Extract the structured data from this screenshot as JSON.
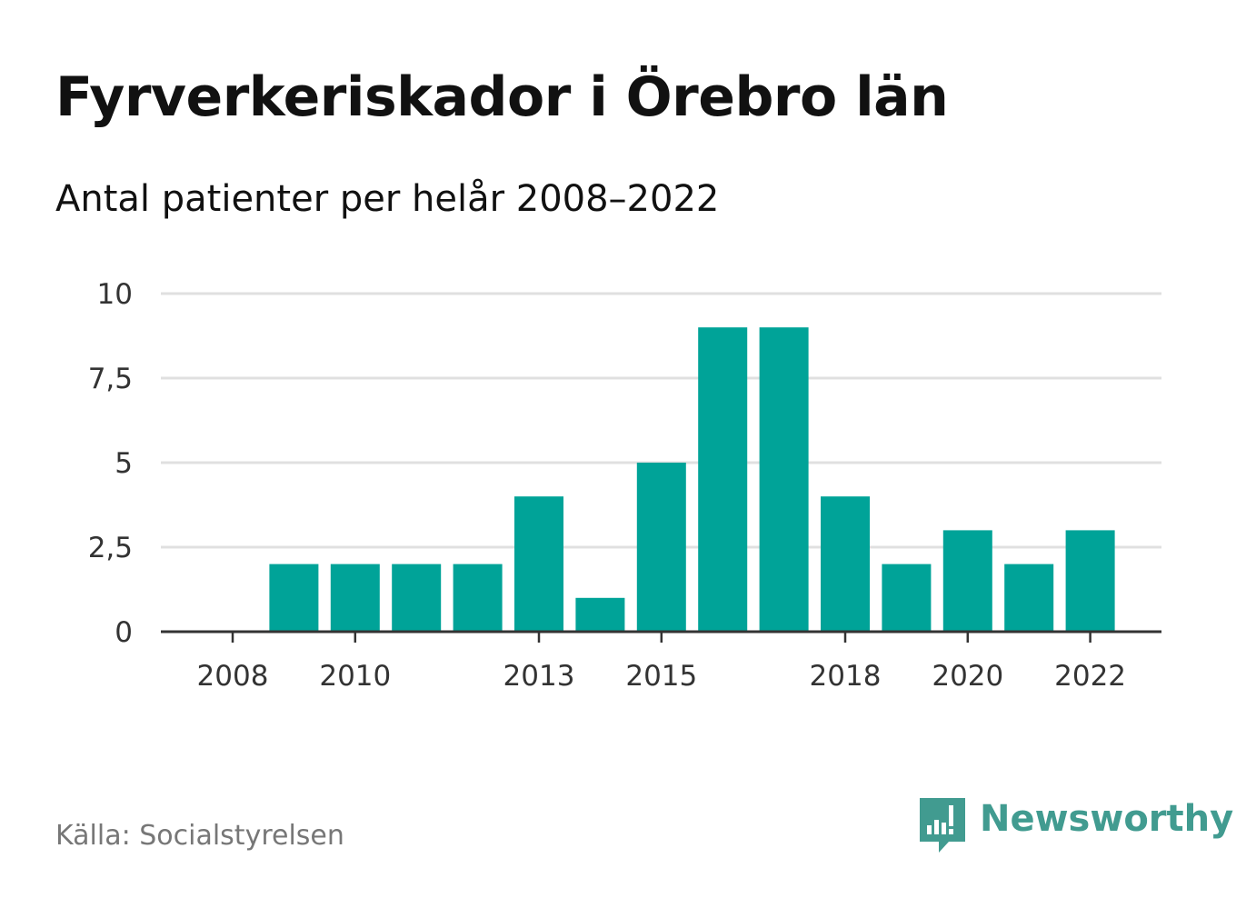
{
  "title": "Fyrverkeriskador i Örebro län",
  "subtitle": "Antal patienter per helår 2008–2022",
  "source": "Källa: Socialstyrelsen",
  "brand": "Newsworthy",
  "colors": {
    "bar": "#00a398",
    "grid": "#e0e0e0",
    "axis": "#333333",
    "brand": "#419b90"
  },
  "chart_data": {
    "type": "bar",
    "categories": [
      "2008",
      "2009",
      "2010",
      "2011",
      "2012",
      "2013",
      "2014",
      "2015",
      "2016",
      "2017",
      "2018",
      "2019",
      "2020",
      "2021",
      "2022"
    ],
    "values": [
      0,
      2,
      2,
      2,
      2,
      4,
      1,
      5,
      9,
      9,
      4,
      2,
      3,
      2,
      3
    ],
    "x_tick_labels": [
      "2008",
      "2010",
      "2013",
      "2015",
      "2018",
      "2020",
      "2022"
    ],
    "y_ticks": [
      0,
      2.5,
      5,
      7.5,
      10
    ],
    "y_tick_labels": [
      "0",
      "2,5",
      "5",
      "7,5",
      "10"
    ],
    "ylim": [
      0,
      10
    ],
    "grid": true
  }
}
